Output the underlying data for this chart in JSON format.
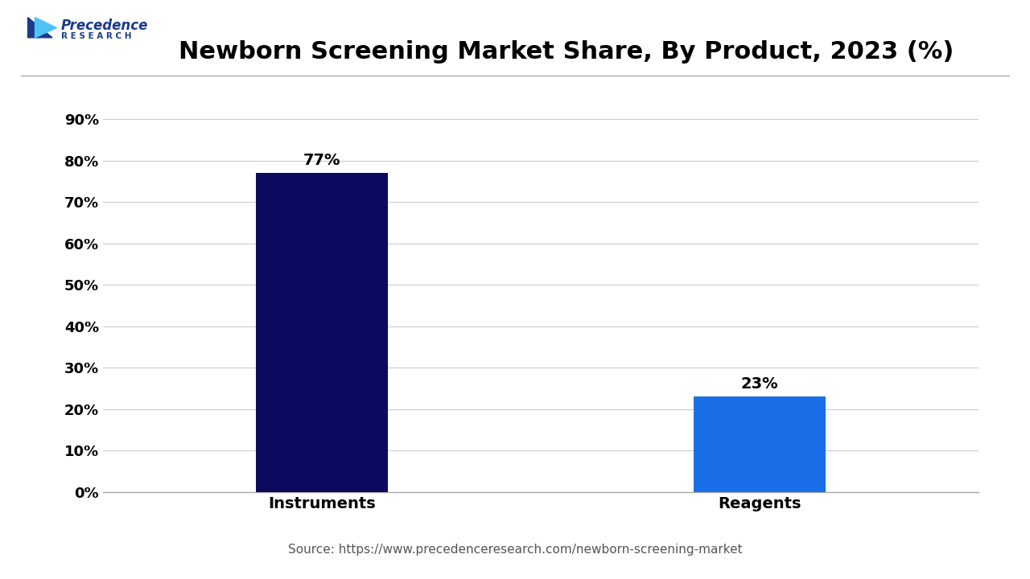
{
  "title": "Newborn Screening Market Share, By Product, 2023 (%)",
  "categories": [
    "Instruments",
    "Reagents"
  ],
  "values": [
    77,
    23
  ],
  "bar_colors": [
    "#0a0a5e",
    "#1a6fe8"
  ],
  "bar_labels": [
    "77%",
    "23%"
  ],
  "yticks": [
    0,
    10,
    20,
    30,
    40,
    50,
    60,
    70,
    80,
    90
  ],
  "ytick_labels": [
    "0%",
    "10%",
    "20%",
    "30%",
    "40%",
    "50%",
    "60%",
    "70%",
    "80%",
    "90%"
  ],
  "ylim": [
    0,
    95
  ],
  "source_text": "Source: https://www.precedenceresearch.com/newborn-screening-market",
  "background_color": "#ffffff",
  "title_fontsize": 22,
  "tick_fontsize": 13,
  "label_fontsize": 14,
  "bar_label_fontsize": 14,
  "source_fontsize": 11,
  "logo_text_precedence": "Precedence",
  "logo_text_research": "R E S E A R C H"
}
